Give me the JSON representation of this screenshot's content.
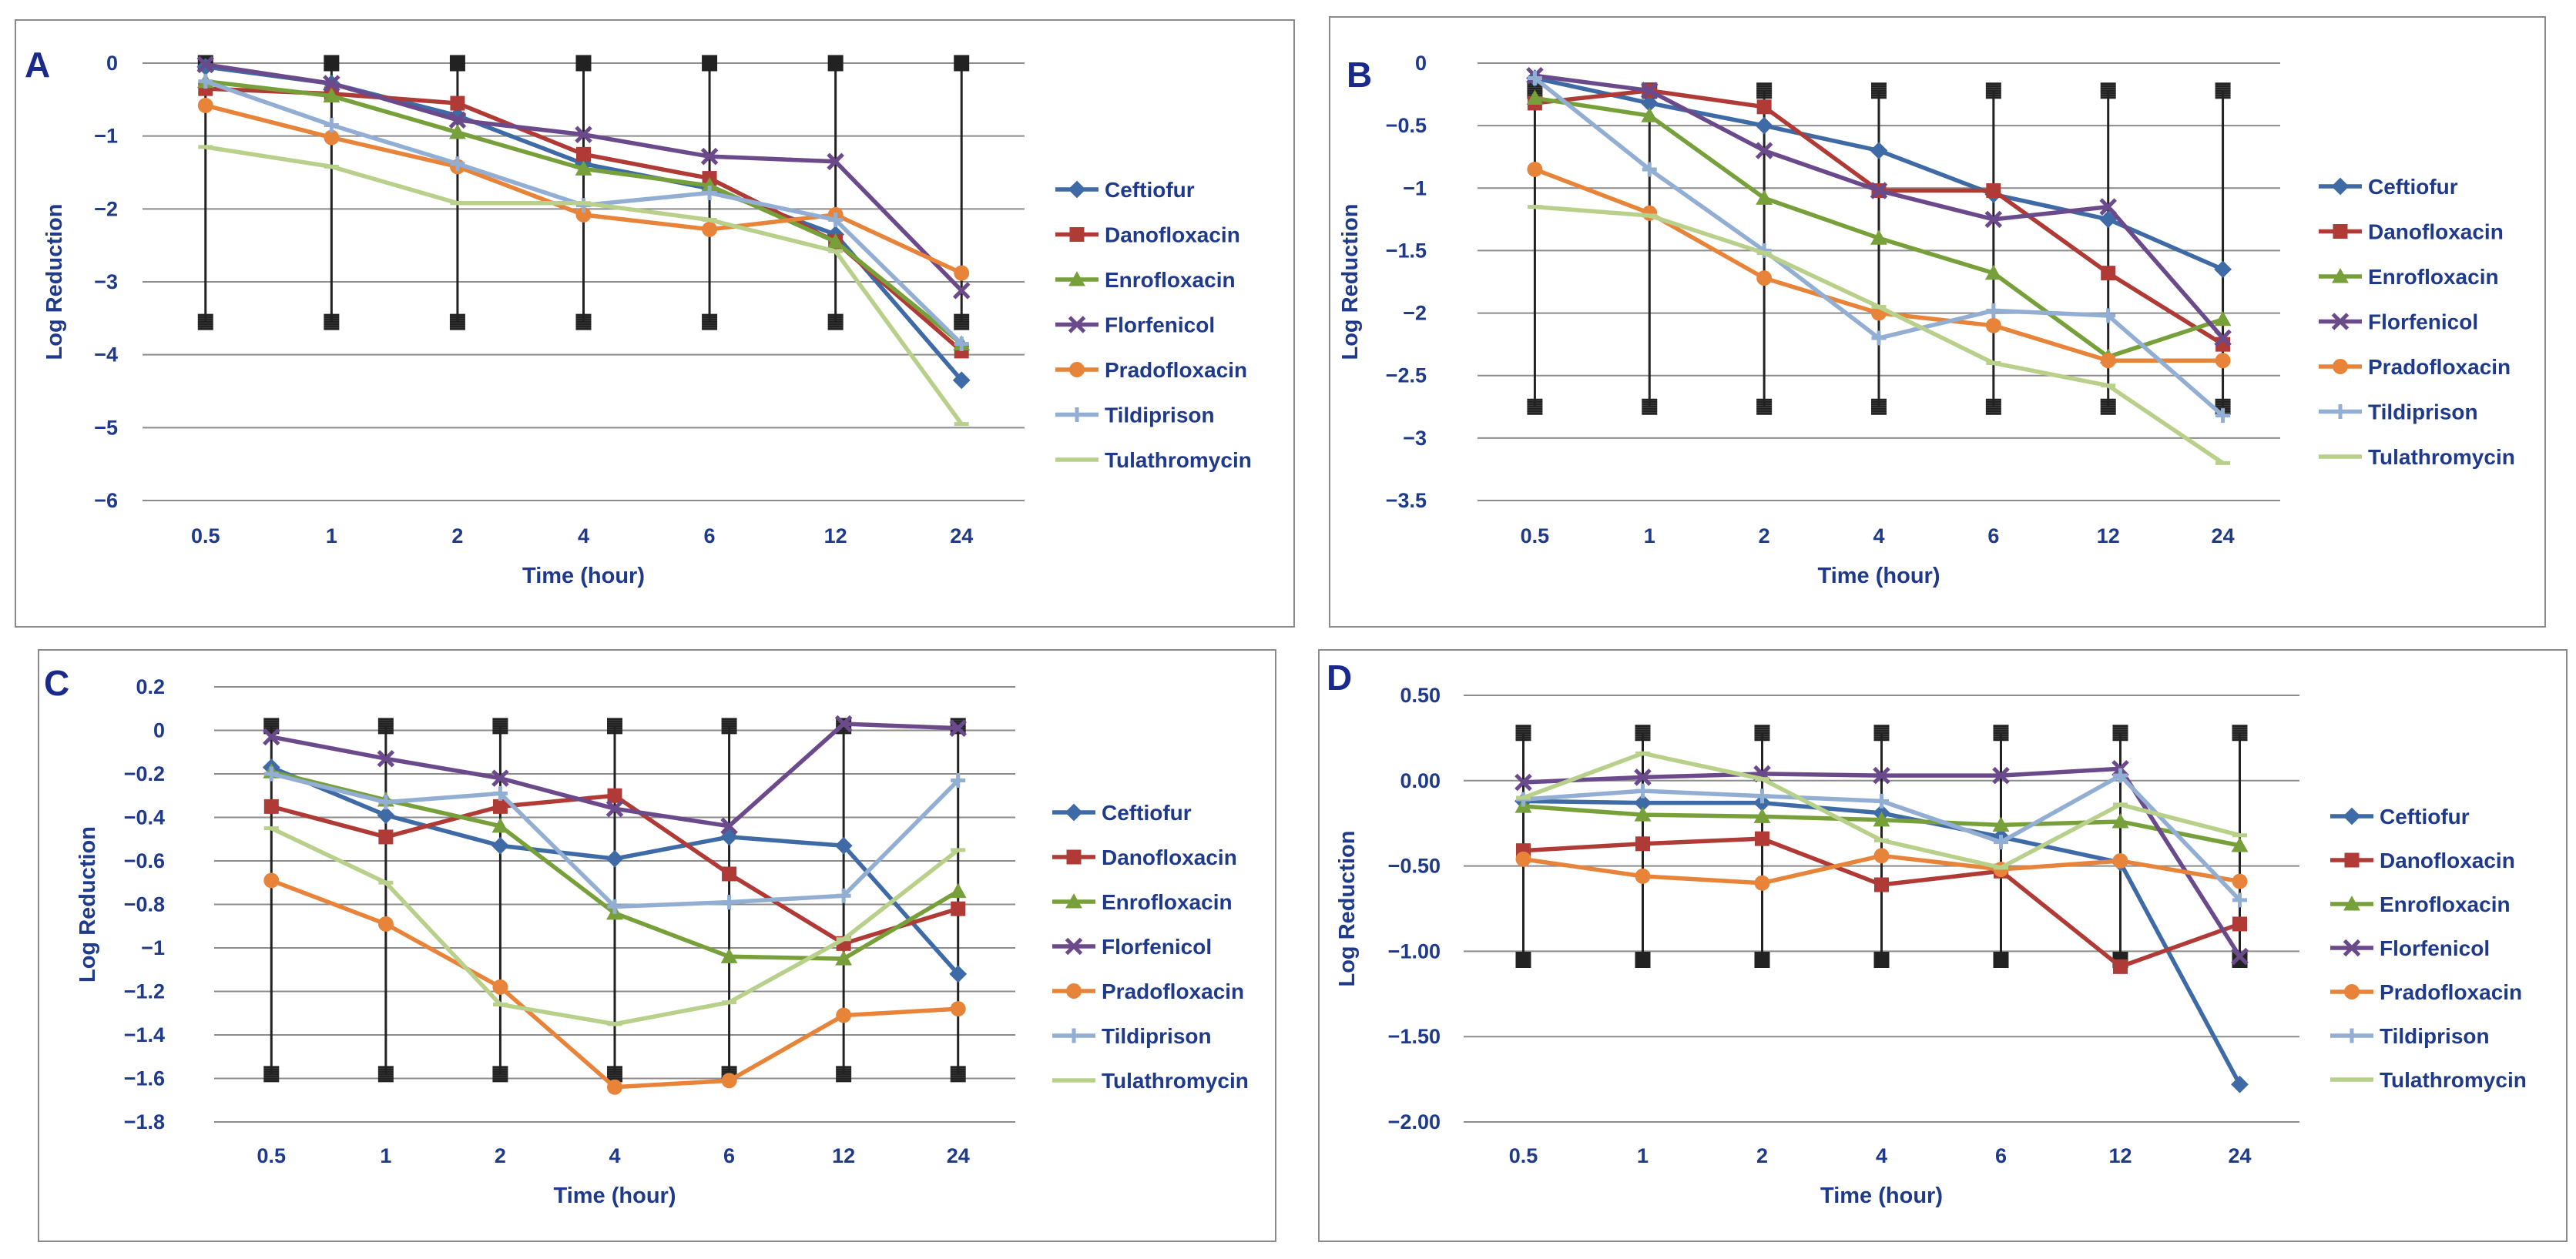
{
  "figure": {
    "title": ""
  },
  "colors": {
    "Ceftiofur": "#3e6aa6",
    "Danofloxacin": "#b03a36",
    "Enrofloxacin": "#77a03a",
    "Florfenicol": "#6b4a8c",
    "Pradofloxacin": "#e8843a",
    "Tildiprison": "#93aed3",
    "Tulathromycin": "#b8d08a"
  },
  "markers": {
    "Ceftiofur": "diamond",
    "Danofloxacin": "square",
    "Enrofloxacin": "triangle",
    "Florfenicol": "x",
    "Pradofloxacin": "circle",
    "Tildiprison": "plus",
    "Tulathromycin": "dash"
  },
  "chart_data": [
    {
      "panel": "A",
      "type": "line",
      "xlabel": "Time (hour)",
      "ylabel": "Log Reduction",
      "categories": [
        "0.5",
        "1",
        "2",
        "4",
        "6",
        "12",
        "24"
      ],
      "ylim": [
        -6,
        0
      ],
      "yticks": [
        0,
        -1,
        -2,
        -3,
        -4,
        -5,
        -6
      ],
      "ytick_labels": [
        "0",
        "−1",
        "−2",
        "−3",
        "−4",
        "−5",
        "−6"
      ],
      "error_range": [
        -3.55,
        0
      ],
      "series": [
        {
          "name": "Ceftiofur",
          "values": [
            -0.05,
            -0.28,
            -0.72,
            -1.38,
            -1.72,
            -2.35,
            -4.35
          ]
        },
        {
          "name": "Danofloxacin",
          "values": [
            -0.35,
            -0.42,
            -0.55,
            -1.25,
            -1.58,
            -2.45,
            -3.95
          ]
        },
        {
          "name": "Enrofloxacin",
          "values": [
            -0.25,
            -0.45,
            -0.95,
            -1.45,
            -1.68,
            -2.45,
            -3.85
          ]
        },
        {
          "name": "Florfenicol",
          "values": [
            -0.02,
            -0.28,
            -0.78,
            -0.98,
            -1.28,
            -1.35,
            -3.12
          ]
        },
        {
          "name": "Pradofloxacin",
          "values": [
            -0.58,
            -1.02,
            -1.42,
            -2.08,
            -2.28,
            -2.08,
            -2.88
          ]
        },
        {
          "name": "Tildiprison",
          "values": [
            -0.25,
            -0.85,
            -1.38,
            -1.95,
            -1.78,
            -2.15,
            -3.85
          ]
        },
        {
          "name": "Tulathromycin",
          "values": [
            -1.15,
            -1.42,
            -1.92,
            -1.92,
            -2.15,
            -2.58,
            -4.95
          ]
        }
      ]
    },
    {
      "panel": "B",
      "type": "line",
      "xlabel": "Time (hour)",
      "ylabel": "Log Reduction",
      "categories": [
        "0.5",
        "1",
        "2",
        "4",
        "6",
        "12",
        "24"
      ],
      "ylim": [
        -3.5,
        0
      ],
      "yticks": [
        0,
        -0.5,
        -1,
        -1.5,
        -2,
        -2.5,
        -3,
        -3.5
      ],
      "ytick_labels": [
        "0",
        "−0.5",
        "−1",
        "−1.5",
        "−2",
        "−2.5",
        "−3",
        "−3.5"
      ],
      "error_range": [
        -2.75,
        -0.22
      ],
      "series": [
        {
          "name": "Ceftiofur",
          "values": [
            -0.12,
            -0.32,
            -0.5,
            -0.7,
            -1.05,
            -1.25,
            -1.65
          ]
        },
        {
          "name": "Danofloxacin",
          "values": [
            -0.32,
            -0.22,
            -0.35,
            -1.02,
            -1.02,
            -1.68,
            -2.25
          ]
        },
        {
          "name": "Enrofloxacin",
          "values": [
            -0.28,
            -0.42,
            -1.08,
            -1.4,
            -1.68,
            -2.35,
            -2.05
          ]
        },
        {
          "name": "Florfenicol",
          "values": [
            -0.1,
            -0.22,
            -0.7,
            -1.02,
            -1.25,
            -1.15,
            -2.2
          ]
        },
        {
          "name": "Pradofloxacin",
          "values": [
            -0.85,
            -1.2,
            -1.72,
            -2.0,
            -2.1,
            -2.38,
            -2.38
          ]
        },
        {
          "name": "Tildiprison",
          "values": [
            -0.12,
            -0.85,
            -1.5,
            -2.2,
            -1.98,
            -2.02,
            -2.82
          ]
        },
        {
          "name": "Tulathromycin",
          "values": [
            -1.15,
            -1.22,
            -1.52,
            -1.95,
            -2.4,
            -2.58,
            -3.2
          ]
        }
      ]
    },
    {
      "panel": "C",
      "type": "line",
      "xlabel": "Time (hour)",
      "ylabel": "Log Reduction",
      "categories": [
        "0.5",
        "1",
        "2",
        "4",
        "6",
        "12",
        "24"
      ],
      "ylim": [
        -1.8,
        0.2
      ],
      "yticks": [
        0.2,
        0,
        -0.2,
        -0.4,
        -0.6,
        -0.8,
        -1,
        -1.2,
        -1.4,
        -1.6,
        -1.8
      ],
      "ytick_labels": [
        "0.2",
        "0",
        "−0.2",
        "−0.4",
        "−0.6",
        "−0.8",
        "−1",
        "−1.2",
        "−1.4",
        "−1.6",
        "−1.8"
      ],
      "error_range": [
        -1.58,
        0.02
      ],
      "series": [
        {
          "name": "Ceftiofur",
          "values": [
            -0.17,
            -0.39,
            -0.53,
            -0.59,
            -0.49,
            -0.53,
            -1.12
          ]
        },
        {
          "name": "Danofloxacin",
          "values": [
            -0.35,
            -0.49,
            -0.35,
            -0.3,
            -0.66,
            -0.98,
            -0.82
          ]
        },
        {
          "name": "Enrofloxacin",
          "values": [
            -0.19,
            -0.32,
            -0.44,
            -0.84,
            -1.04,
            -1.05,
            -0.74
          ]
        },
        {
          "name": "Florfenicol",
          "values": [
            -0.03,
            -0.13,
            -0.22,
            -0.36,
            -0.44,
            0.03,
            0.01
          ]
        },
        {
          "name": "Pradofloxacin",
          "values": [
            -0.69,
            -0.89,
            -1.18,
            -1.64,
            -1.61,
            -1.31,
            -1.28
          ]
        },
        {
          "name": "Tildiprison",
          "values": [
            -0.2,
            -0.33,
            -0.29,
            -0.81,
            -0.79,
            -0.76,
            -0.23
          ]
        },
        {
          "name": "Tulathromycin",
          "values": [
            -0.45,
            -0.7,
            -1.26,
            -1.35,
            -1.25,
            -0.96,
            -0.55
          ]
        }
      ]
    },
    {
      "panel": "D",
      "type": "line",
      "xlabel": "Time (hour)",
      "ylabel": "Log Reduction",
      "categories": [
        "0.5",
        "1",
        "2",
        "4",
        "6",
        "12",
        "24"
      ],
      "ylim": [
        -2.0,
        0.5
      ],
      "yticks": [
        0.5,
        0.0,
        -0.5,
        -1.0,
        -1.5,
        -2.0
      ],
      "ytick_labels": [
        "0.50",
        "0.00",
        "−0.50",
        "−1.00",
        "−1.50",
        "−2.00"
      ],
      "error_range": [
        -1.05,
        0.28
      ],
      "series": [
        {
          "name": "Ceftiofur",
          "values": [
            -0.12,
            -0.13,
            -0.13,
            -0.19,
            -0.33,
            -0.48,
            -1.78
          ]
        },
        {
          "name": "Danofloxacin",
          "values": [
            -0.41,
            -0.37,
            -0.34,
            -0.61,
            -0.53,
            -1.09,
            -0.84
          ]
        },
        {
          "name": "Enrofloxacin",
          "values": [
            -0.15,
            -0.2,
            -0.21,
            -0.23,
            -0.26,
            -0.24,
            -0.38
          ]
        },
        {
          "name": "Florfenicol",
          "values": [
            -0.01,
            0.02,
            0.04,
            0.03,
            0.03,
            0.07,
            -1.03
          ]
        },
        {
          "name": "Pradofloxacin",
          "values": [
            -0.46,
            -0.56,
            -0.6,
            -0.44,
            -0.52,
            -0.47,
            -0.59
          ]
        },
        {
          "name": "Tildiprison",
          "values": [
            -0.11,
            -0.06,
            -0.09,
            -0.12,
            -0.36,
            0.03,
            -0.7
          ]
        },
        {
          "name": "Tulathromycin",
          "values": [
            -0.1,
            0.16,
            0.01,
            -0.35,
            -0.51,
            -0.14,
            -0.32
          ]
        }
      ]
    }
  ]
}
